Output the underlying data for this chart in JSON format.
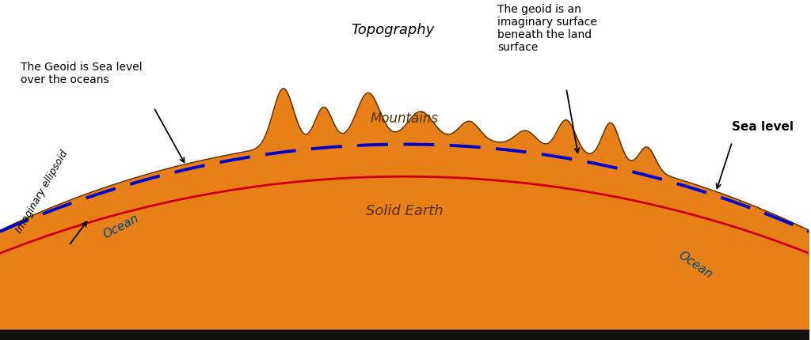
{
  "bg_color": "#ffffff",
  "ocean_color": "#00b8e6",
  "earth_color": "#e8801a",
  "earth_outline_color": "#5a3000",
  "ellipsoid_color": "#cc0000",
  "geoid_color": "#0000cc",
  "bottom_bar_color": "#111111",
  "figsize": [
    10.24,
    4.3
  ],
  "dpi": 100,
  "labels": {
    "topography": "Topography",
    "mountains": "Mountains",
    "solid_earth": "Solid Earth",
    "ocean_left": "Ocean",
    "ocean_right": "Ocean",
    "geoid_sea": "The Geoid is Sea level\nover the oceans",
    "geoid_land": "The geoid is an\nimaginary surface\nbeneath the land\nsurface",
    "ellipsoid": "Imaginary ellipsoid",
    "sea_level": "Sea level"
  }
}
